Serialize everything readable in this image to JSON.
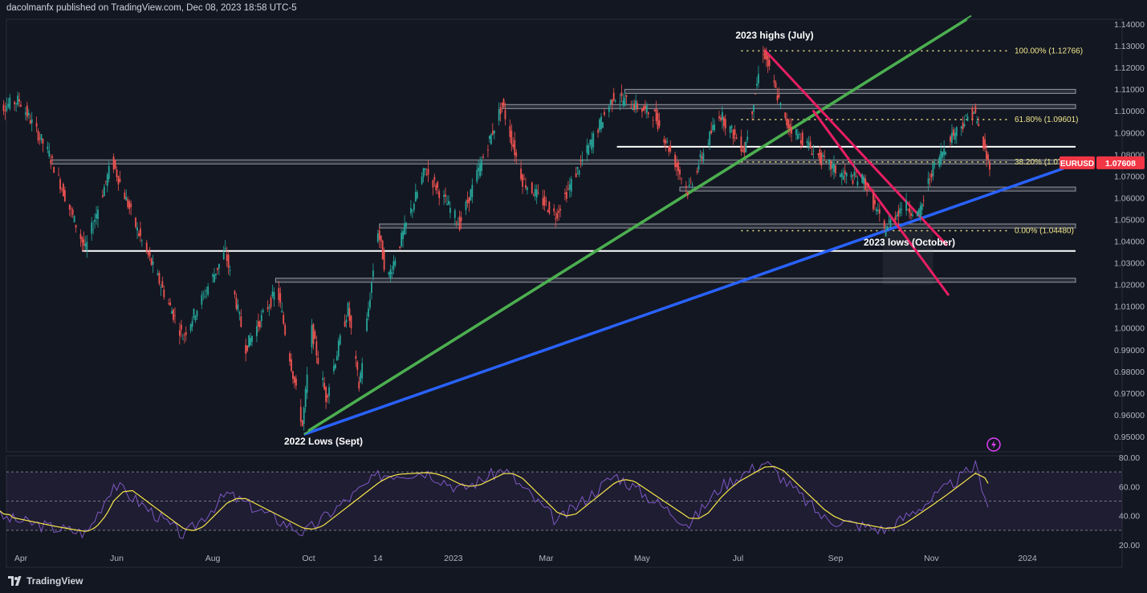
{
  "header": {
    "text": "dacolmanfx published on TradingView.com, Dec 08, 2023 18:58 UTC-5"
  },
  "footer": {
    "brand": "TradingView"
  },
  "symbol": {
    "ticker": "EURUSD",
    "last_price": "1.07608",
    "badge_color": "#f23645"
  },
  "chart_data": {
    "type": "candlestick",
    "instrument": "EURUSD",
    "x_ticks": [
      "Apr",
      "Jun",
      "Aug",
      "Oct",
      "14",
      "2023",
      "Mar",
      "May",
      "Jul",
      "Sep",
      "Nov",
      "2024"
    ],
    "x_tick_dates": [
      "2022-04-01",
      "2022-06-01",
      "2022-08-01",
      "2022-10-01",
      "2022-11-14",
      "2023-01-01",
      "2023-03-01",
      "2023-05-01",
      "2023-07-01",
      "2023-09-01",
      "2023-11-01",
      "2024-01-01"
    ],
    "x_range": [
      "2022-03-15",
      "2024-02-25"
    ],
    "y_ticks": [
      "1.14000",
      "1.13000",
      "1.12000",
      "1.11000",
      "1.10000",
      "1.09000",
      "1.08000",
      "1.07000",
      "1.06000",
      "1.05000",
      "1.04000",
      "1.03000",
      "1.02000",
      "1.01000",
      "1.00000",
      "0.99000",
      "0.98000",
      "0.97000",
      "0.96000",
      "0.95000"
    ],
    "ylim": [
      0.944,
      1.1415
    ],
    "price_path": [
      {
        "date": "2022-03-15",
        "price": 1.1
      },
      {
        "date": "2022-04-01",
        "price": 1.105
      },
      {
        "date": "2022-04-20",
        "price": 1.08
      },
      {
        "date": "2022-05-13",
        "price": 1.036
      },
      {
        "date": "2022-05-30",
        "price": 1.077
      },
      {
        "date": "2022-06-15",
        "price": 1.045
      },
      {
        "date": "2022-07-14",
        "price": 0.996
      },
      {
        "date": "2022-08-10",
        "price": 1.035
      },
      {
        "date": "2022-08-23",
        "price": 0.991
      },
      {
        "date": "2022-09-12",
        "price": 1.018
      },
      {
        "date": "2022-09-28",
        "price": 0.955
      },
      {
        "date": "2022-10-04",
        "price": 0.999
      },
      {
        "date": "2022-10-13",
        "price": 0.968
      },
      {
        "date": "2022-10-27",
        "price": 1.009
      },
      {
        "date": "2022-11-03",
        "price": 0.973
      },
      {
        "date": "2022-11-15",
        "price": 1.045
      },
      {
        "date": "2022-11-21",
        "price": 1.022
      },
      {
        "date": "2022-12-15",
        "price": 1.073
      },
      {
        "date": "2023-01-06",
        "price": 1.048
      },
      {
        "date": "2023-02-02",
        "price": 1.103
      },
      {
        "date": "2023-02-15",
        "price": 1.068
      },
      {
        "date": "2023-03-08",
        "price": 1.052
      },
      {
        "date": "2023-04-14",
        "price": 1.107
      },
      {
        "date": "2023-05-10",
        "price": 1.098
      },
      {
        "date": "2023-05-31",
        "price": 1.063
      },
      {
        "date": "2023-06-20",
        "price": 1.099
      },
      {
        "date": "2023-07-06",
        "price": 1.082
      },
      {
        "date": "2023-07-18",
        "price": 1.128
      },
      {
        "date": "2023-08-01",
        "price": 1.095
      },
      {
        "date": "2023-08-25",
        "price": 1.077
      },
      {
        "date": "2023-09-07",
        "price": 1.07
      },
      {
        "date": "2023-09-20",
        "price": 1.068
      },
      {
        "date": "2023-10-03",
        "price": 1.045
      },
      {
        "date": "2023-10-15",
        "price": 1.057
      },
      {
        "date": "2023-10-25",
        "price": 1.052
      },
      {
        "date": "2023-11-02",
        "price": 1.072
      },
      {
        "date": "2023-11-14",
        "price": 1.088
      },
      {
        "date": "2023-11-29",
        "price": 1.1
      },
      {
        "date": "2023-12-08",
        "price": 1.076
      }
    ],
    "fibonacci": [
      {
        "label": "100.00% (1.12766)",
        "price": 1.12766
      },
      {
        "label": "61.80% (1.09601)",
        "price": 1.09601
      },
      {
        "label": "38.20% (1.07645)",
        "price": 1.07645
      },
      {
        "label": "0.00% (1.04480)",
        "price": 1.0448
      }
    ],
    "horizontal_levels": [
      {
        "price": 1.0835,
        "style": "white-line"
      },
      {
        "price": 1.0355,
        "style": "white-line"
      },
      {
        "price": 1.109,
        "style": "zone"
      },
      {
        "price": 1.102,
        "style": "zone"
      },
      {
        "price": 1.0765,
        "style": "zone"
      },
      {
        "price": 1.064,
        "style": "zone"
      },
      {
        "price": 1.047,
        "style": "zone"
      },
      {
        "price": 1.022,
        "style": "zone"
      }
    ],
    "annotations": [
      "2023 highs (July)",
      "2022 Lows (Sept)",
      "2023 lows (October)"
    ],
    "rsi_panel": {
      "y_ticks": [
        "80.00",
        "60.00",
        "40.00",
        "20.00"
      ],
      "ylim": [
        14,
        80
      ],
      "levels": [
        70,
        50,
        30
      ],
      "rsi_path": [
        {
          "date": "2022-03-15",
          "value": 40
        },
        {
          "date": "2022-04-20",
          "value": 32
        },
        {
          "date": "2022-05-13",
          "value": 28
        },
        {
          "date": "2022-05-30",
          "value": 62
        },
        {
          "date": "2022-07-14",
          "value": 26
        },
        {
          "date": "2022-08-10",
          "value": 55
        },
        {
          "date": "2022-09-28",
          "value": 28
        },
        {
          "date": "2022-11-15",
          "value": 68
        },
        {
          "date": "2022-12-15",
          "value": 70
        },
        {
          "date": "2023-01-06",
          "value": 58
        },
        {
          "date": "2023-02-02",
          "value": 72
        },
        {
          "date": "2023-03-08",
          "value": 36
        },
        {
          "date": "2023-04-14",
          "value": 68
        },
        {
          "date": "2023-05-31",
          "value": 34
        },
        {
          "date": "2023-06-20",
          "value": 60
        },
        {
          "date": "2023-07-18",
          "value": 77
        },
        {
          "date": "2023-08-25",
          "value": 38
        },
        {
          "date": "2023-10-03",
          "value": 30
        },
        {
          "date": "2023-11-02",
          "value": 52
        },
        {
          "date": "2023-11-29",
          "value": 74
        },
        {
          "date": "2023-12-08",
          "value": 45
        }
      ]
    }
  }
}
